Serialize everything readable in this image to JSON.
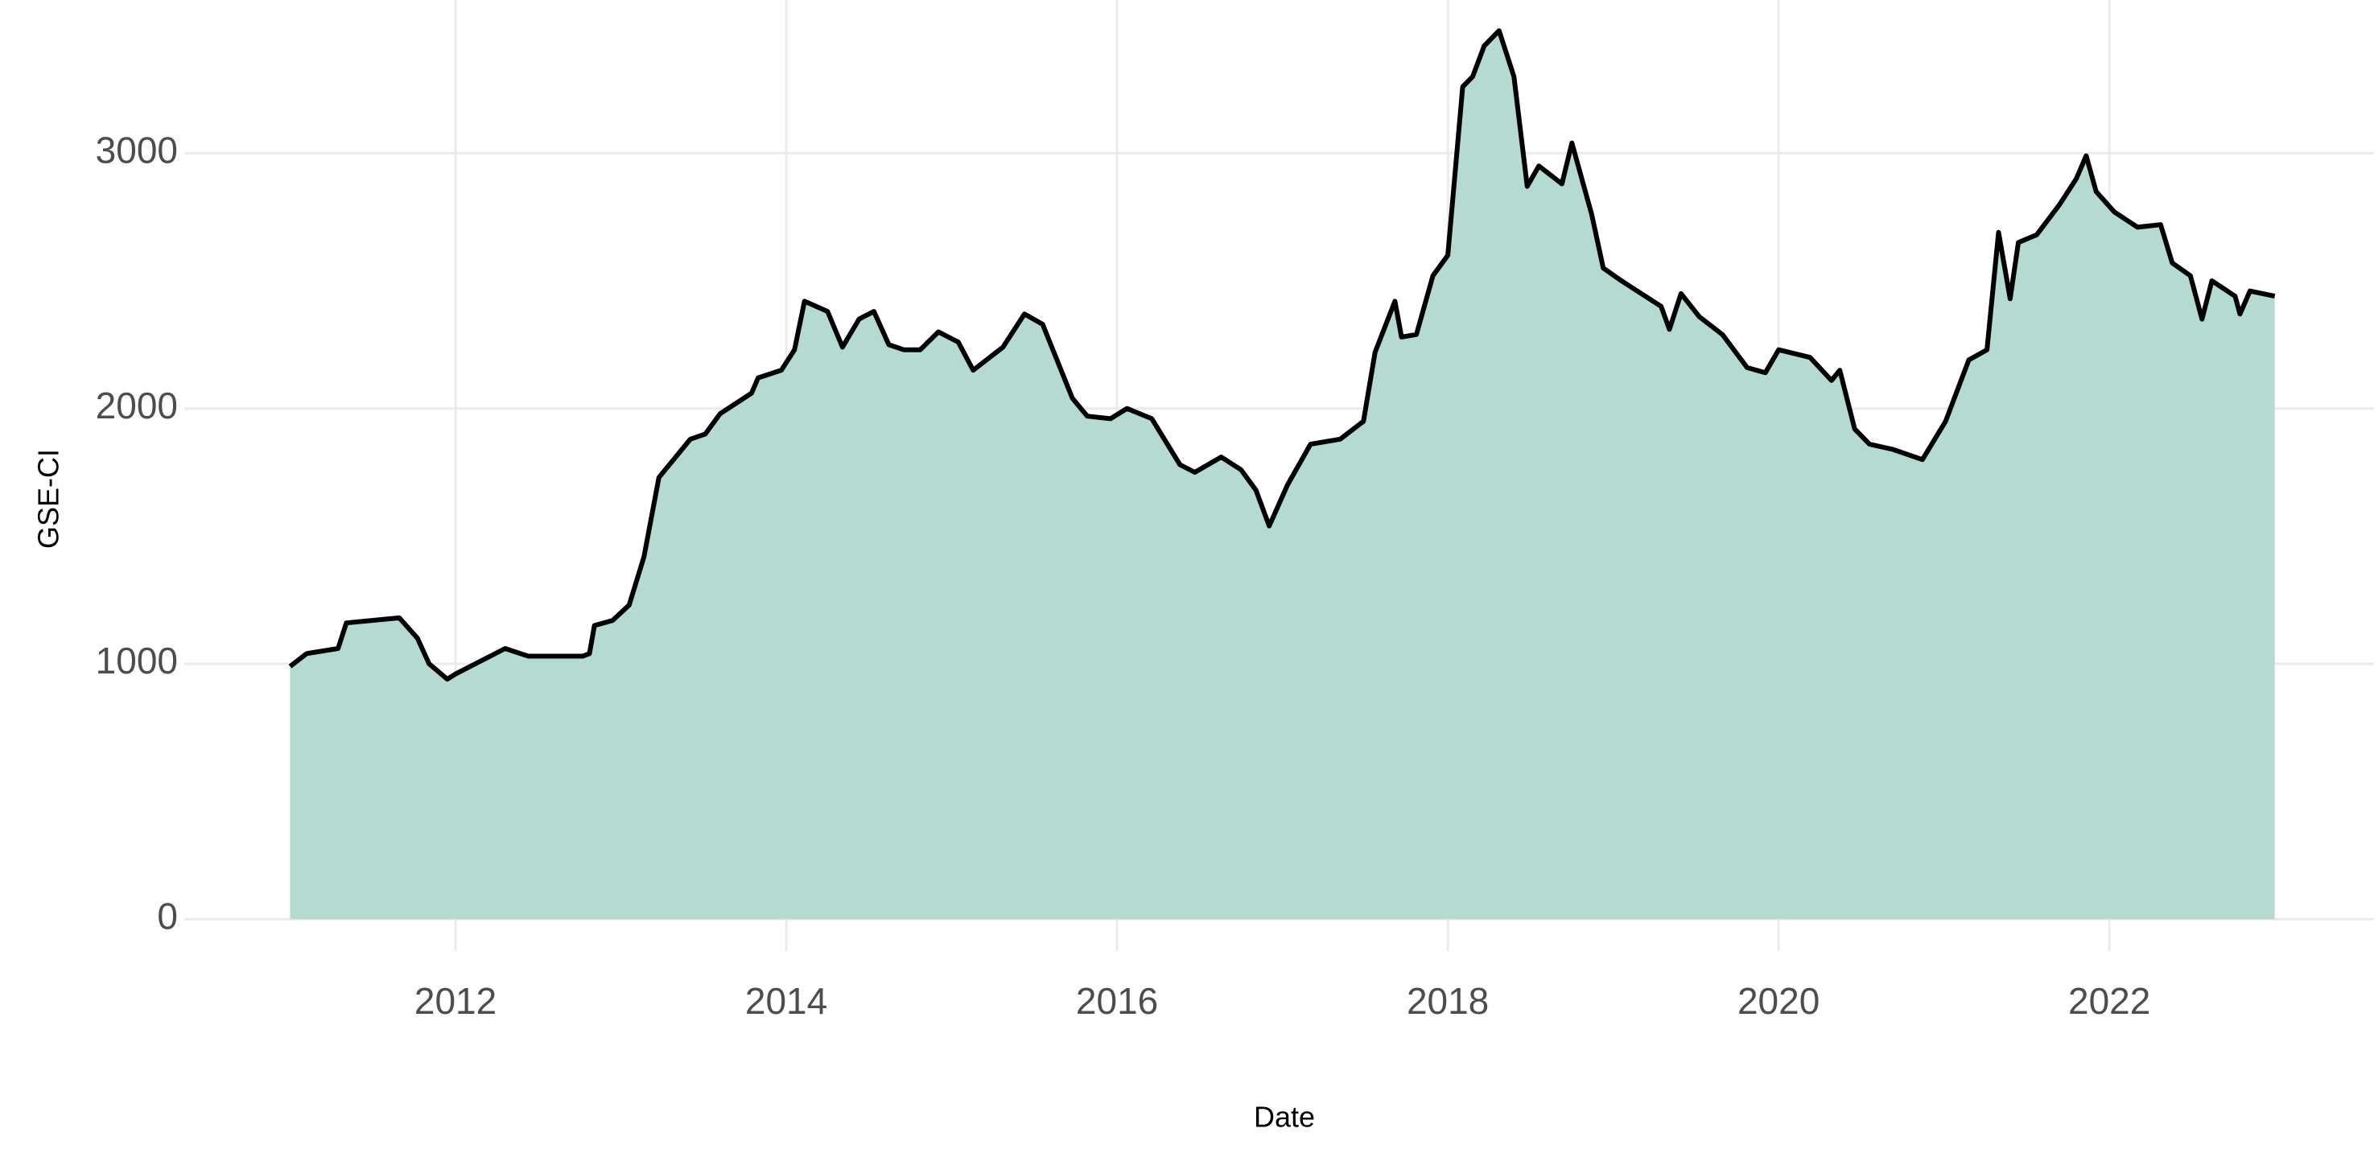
{
  "chart_data": {
    "type": "area",
    "x_label": "Date",
    "y_label": "GSE-CI",
    "x": [
      2011.0,
      2011.1,
      2011.29,
      2011.34,
      2011.66,
      2011.77,
      2011.84,
      2011.95,
      2012.0,
      2012.21,
      2012.3,
      2012.44,
      2012.77,
      2012.81,
      2012.84,
      2012.95,
      2013.05,
      2013.14,
      2013.23,
      2013.42,
      2013.51,
      2013.6,
      2013.79,
      2013.83,
      2013.97,
      2014.05,
      2014.11,
      2014.25,
      2014.34,
      2014.44,
      2014.53,
      2014.62,
      2014.71,
      2014.81,
      2014.92,
      2015.04,
      2015.13,
      2015.31,
      2015.44,
      2015.55,
      2015.73,
      2015.82,
      2015.96,
      2016.06,
      2016.21,
      2016.38,
      2016.47,
      2016.63,
      2016.75,
      2016.84,
      2016.92,
      2017.03,
      2017.17,
      2017.35,
      2017.49,
      2017.56,
      2017.68,
      2017.72,
      2017.81,
      2017.91,
      2018.0,
      2018.09,
      2018.15,
      2018.22,
      2018.31,
      2018.4,
      2018.48,
      2018.55,
      2018.69,
      2018.75,
      2018.87,
      2018.94,
      2019.05,
      2019.29,
      2019.34,
      2019.41,
      2019.52,
      2019.66,
      2019.81,
      2019.92,
      2020.0,
      2020.19,
      2020.32,
      2020.37,
      2020.46,
      2020.55,
      2020.69,
      2020.87,
      2021.01,
      2021.15,
      2021.26,
      2021.33,
      2021.4,
      2021.45,
      2021.56,
      2021.7,
      2021.8,
      2021.86,
      2021.92,
      2022.03,
      2022.17,
      2022.31,
      2022.38,
      2022.49,
      2022.56,
      2022.62,
      2022.76,
      2022.79,
      2022.85,
      2023.0
    ],
    "values": [
      990,
      1040,
      1060,
      1160,
      1180,
      1100,
      1000,
      940,
      960,
      1030,
      1060,
      1030,
      1030,
      1040,
      1150,
      1170,
      1230,
      1420,
      1730,
      1880,
      1900,
      1980,
      2060,
      2120,
      2150,
      2230,
      2420,
      2380,
      2240,
      2350,
      2380,
      2250,
      2230,
      2230,
      2300,
      2260,
      2150,
      2240,
      2370,
      2330,
      2040,
      1970,
      1960,
      2000,
      1960,
      1780,
      1750,
      1810,
      1760,
      1680,
      1540,
      1700,
      1860,
      1880,
      1950,
      2220,
      2420,
      2280,
      2290,
      2520,
      2600,
      3260,
      3300,
      3420,
      3480,
      3300,
      2870,
      2950,
      2880,
      3040,
      2760,
      2550,
      2500,
      2400,
      2310,
      2450,
      2360,
      2290,
      2160,
      2140,
      2230,
      2200,
      2110,
      2150,
      1920,
      1860,
      1840,
      1800,
      1950,
      2190,
      2230,
      2690,
      2430,
      2650,
      2680,
      2800,
      2900,
      2990,
      2850,
      2770,
      2710,
      2720,
      2570,
      2520,
      2350,
      2500,
      2440,
      2370,
      2460,
      2440
    ],
    "xlim": [
      2010.36,
      2023.6
    ],
    "ylim": [
      -125,
      3600
    ],
    "xticks": [
      2012,
      2014,
      2016,
      2018,
      2020,
      2022
    ],
    "yticks": [
      0,
      1000,
      2000,
      3000
    ],
    "grid": true,
    "fill_color": "#b4dad2",
    "line_color": "#000000"
  }
}
